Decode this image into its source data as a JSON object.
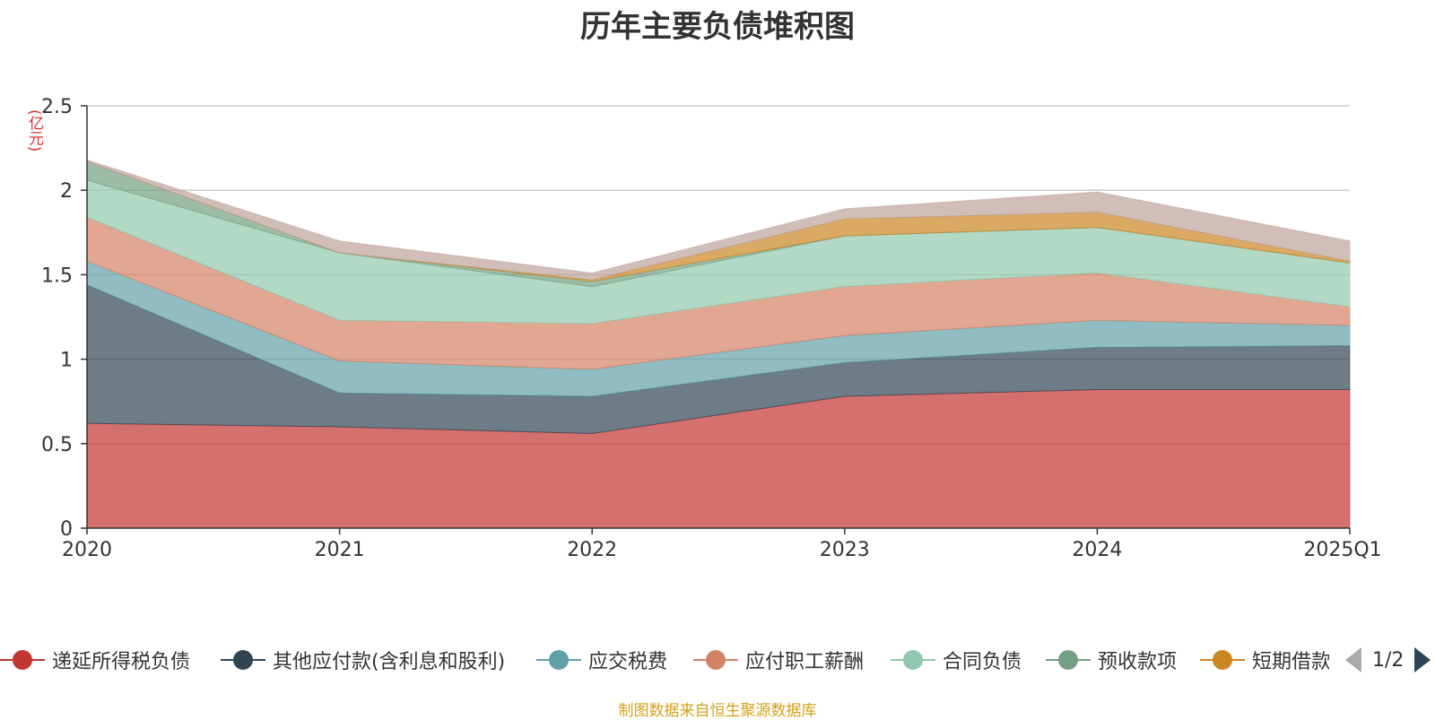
{
  "chart_data": {
    "type": "area",
    "stacked": true,
    "title": "历年主要负债堆积图",
    "y_unit": "(亿元)",
    "categories": [
      "2020",
      "2021",
      "2022",
      "2023",
      "2024",
      "2025Q1"
    ],
    "ylim": [
      0,
      2.5
    ],
    "y_ticks": [
      "0",
      "0.5",
      "1",
      "1.5",
      "2",
      "2.5"
    ],
    "grid": true,
    "legend_position": "bottom",
    "series": [
      {
        "name": "递延所得税负债",
        "color": "#c23531",
        "values": [
          0.62,
          0.6,
          0.56,
          0.78,
          0.82,
          0.82
        ]
      },
      {
        "name": "其他应付款(含利息和股利)",
        "color": "#2f4554",
        "values": [
          0.82,
          0.2,
          0.22,
          0.2,
          0.25,
          0.26
        ]
      },
      {
        "name": "应交税费",
        "color": "#61a0a8",
        "values": [
          0.14,
          0.19,
          0.16,
          0.16,
          0.16,
          0.12
        ]
      },
      {
        "name": "应付职工薪酬",
        "color": "#d48265",
        "values": [
          0.26,
          0.24,
          0.27,
          0.29,
          0.28,
          0.11
        ]
      },
      {
        "name": "合同负债",
        "color": "#91c7ae",
        "values": [
          0.22,
          0.4,
          0.22,
          0.3,
          0.27,
          0.26
        ]
      },
      {
        "name": "预收款项",
        "color": "#749f83",
        "values": [
          0.11,
          0.0,
          0.03,
          0.0,
          0.0,
          0.0
        ]
      },
      {
        "name": "短期借款",
        "color": "#ca8622",
        "values": [
          0.0,
          0.0,
          0.01,
          0.1,
          0.09,
          0.01
        ]
      },
      {
        "name": "",
        "color": "#bda29a",
        "values": [
          0.01,
          0.07,
          0.04,
          0.06,
          0.12,
          0.12
        ]
      }
    ]
  },
  "legend": {
    "items": [
      "递延所得税负债",
      "其他应付款(含利息和股利)",
      "应交税费",
      "应付职工薪酬",
      "合同负债",
      "预收款项",
      "短期借款"
    ],
    "page": "1/2"
  },
  "source": "制图数据来自恒生聚源数据库"
}
